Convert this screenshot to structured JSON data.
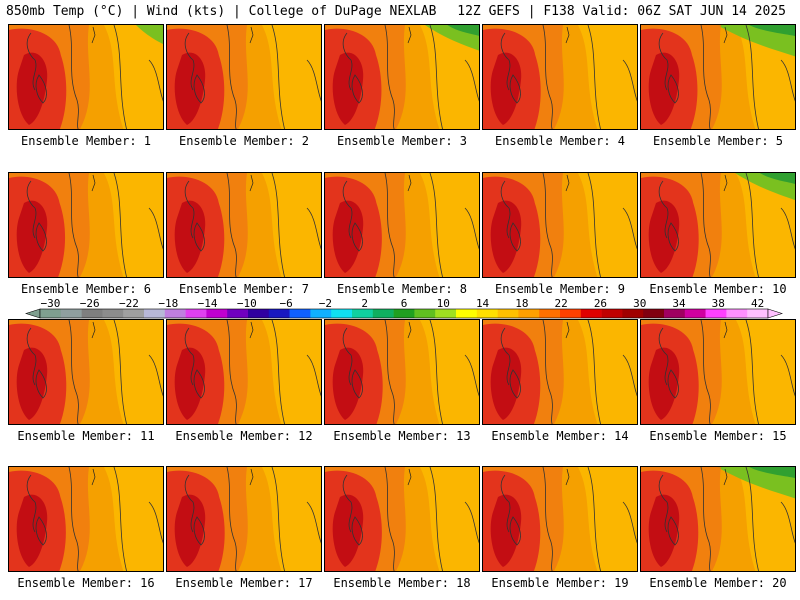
{
  "header": {
    "left": "850mb Temp (°C) | Wind (kts) | College of DuPage NEXLAB",
    "right": "12Z GEFS | F138 Valid: 06Z SAT JUN 14 2025"
  },
  "members": [
    {
      "label": "Ensemble Member: 1",
      "green": 0.15,
      "heat": 0.85
    },
    {
      "label": "Ensemble Member: 2",
      "green": 0.0,
      "heat": 0.85
    },
    {
      "label": "Ensemble Member: 3",
      "green": 0.6,
      "heat": 0.75
    },
    {
      "label": "Ensemble Member: 4",
      "green": 0.0,
      "heat": 0.9
    },
    {
      "label": "Ensemble Member: 5",
      "green": 1.0,
      "heat": 0.75
    },
    {
      "label": "Ensemble Member: 6",
      "green": 0.0,
      "heat": 0.7
    },
    {
      "label": "Ensemble Member: 7",
      "green": 0.0,
      "heat": 0.85
    },
    {
      "label": "Ensemble Member: 8",
      "green": 0.0,
      "heat": 0.8
    },
    {
      "label": "Ensemble Member: 9",
      "green": 0.0,
      "heat": 0.85
    },
    {
      "label": "Ensemble Member: 10",
      "green": 0.7,
      "heat": 0.9
    },
    {
      "label": "Ensemble Member: 11",
      "green": 0.0,
      "heat": 0.85
    },
    {
      "label": "Ensemble Member: 12",
      "green": 0.0,
      "heat": 0.85
    },
    {
      "label": "Ensemble Member: 13",
      "green": 0.0,
      "heat": 0.9
    },
    {
      "label": "Ensemble Member: 14",
      "green": 0.0,
      "heat": 0.85
    },
    {
      "label": "Ensemble Member: 15",
      "green": 0.0,
      "heat": 0.9
    },
    {
      "label": "Ensemble Member: 16",
      "green": 0.0,
      "heat": 0.8
    },
    {
      "label": "Ensemble Member: 17",
      "green": 0.0,
      "heat": 0.9
    },
    {
      "label": "Ensemble Member: 18",
      "green": 0.0,
      "heat": 0.8
    },
    {
      "label": "Ensemble Member: 19",
      "green": 0.0,
      "heat": 0.85
    },
    {
      "label": "Ensemble Member: 20",
      "green": 1.0,
      "heat": 0.85
    }
  ],
  "colorbar": {
    "ticks": [
      "−30",
      "−26",
      "−22",
      "−18",
      "−14",
      "−10",
      "−6",
      "−2",
      "2",
      "6",
      "10",
      "14",
      "18",
      "22",
      "26",
      "30",
      "34",
      "38",
      "42"
    ],
    "colors": [
      "#7f9f8f",
      "#8f9f9f",
      "#7f7f7f",
      "#8c8c8c",
      "#a0a0a0",
      "#b8b8d8",
      "#c07fe0",
      "#e040f0",
      "#c000d0",
      "#7000c0",
      "#3000a0",
      "#1818c0",
      "#1060ff",
      "#10b0ff",
      "#10e0f0",
      "#10d0a0",
      "#10b060",
      "#20a020",
      "#60c020",
      "#a0e020",
      "#ffff00",
      "#ffe000",
      "#ffc000",
      "#ffa000",
      "#ff7000",
      "#ff4000",
      "#e00000",
      "#c00000",
      "#a00000",
      "#800010",
      "#a00060",
      "#d000a0",
      "#ff40ff",
      "#ff90ff",
      "#ffc0ff"
    ]
  },
  "colors": {
    "warm_bg": "#f5a000",
    "orange": "#f07a10",
    "red": "#e02020",
    "dark_red": "#b80010",
    "yellow": "#ffc800",
    "green": "#7ac020",
    "dark_green": "#30a030"
  }
}
